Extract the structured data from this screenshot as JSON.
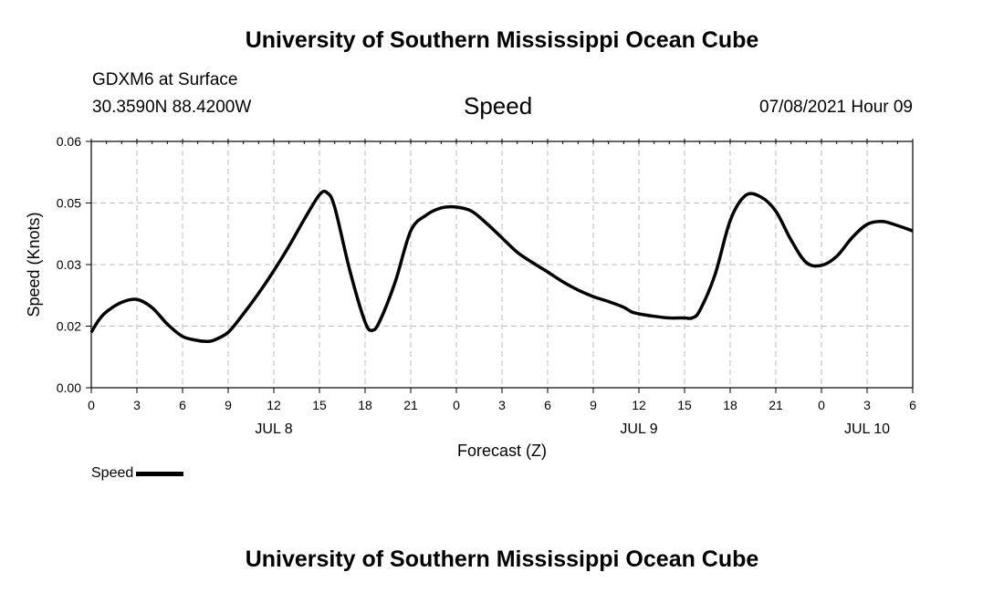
{
  "header": {
    "top_title": "University of Southern Mississippi Ocean Cube",
    "station": "GDXM6 at Surface",
    "coords": "30.3590N  88.4200W",
    "date": "07/08/2021 Hour 09"
  },
  "footer": {
    "bottom_title": "University of Southern Mississippi Ocean Cube"
  },
  "legend": {
    "label": "Speed",
    "color": "#000000"
  },
  "chart_data": {
    "type": "line",
    "title": "Speed",
    "xlabel": "Forecast (Z)",
    "ylabel": "Speed (Knots)",
    "xlim": [
      0,
      54
    ],
    "ylim": [
      0,
      0.06
    ],
    "grid": true,
    "legend_position": "bottom-left",
    "x_tick_labels": [
      "0",
      "3",
      "6",
      "9",
      "12",
      "15",
      "18",
      "21",
      "0",
      "3",
      "6",
      "9",
      "12",
      "15",
      "18",
      "21",
      "0",
      "3",
      "6"
    ],
    "y_tick_labels": [
      "0.00",
      "0.02",
      "0.03",
      "0.05",
      "0.06"
    ],
    "y_tick_values": [
      0,
      0.015,
      0.03,
      0.045,
      0.06
    ],
    "date_labels": [
      {
        "text": "JUL 8",
        "hour": 12
      },
      {
        "text": "JUL 9",
        "hour": 36
      },
      {
        "text": "JUL 10",
        "hour": 51
      }
    ],
    "series": [
      {
        "name": "Speed",
        "x": [
          0,
          0.5,
          1,
          2,
          3,
          4,
          5,
          6,
          7,
          7.5,
          8,
          9,
          10,
          11,
          12,
          13,
          14,
          15,
          15.5,
          16,
          17,
          18,
          18.5,
          19,
          20,
          21,
          22,
          23,
          24,
          25,
          26,
          27,
          28,
          29,
          30,
          31,
          32,
          33,
          34,
          35,
          35.5,
          36,
          37,
          38,
          39,
          39.5,
          40,
          41,
          42,
          43,
          44,
          45,
          46,
          47,
          48,
          49,
          50,
          51,
          52,
          53,
          54
        ],
        "y": [
          0.0135,
          0.0165,
          0.0185,
          0.0208,
          0.0215,
          0.0195,
          0.0155,
          0.0125,
          0.0115,
          0.0113,
          0.0115,
          0.0135,
          0.018,
          0.023,
          0.0285,
          0.0345,
          0.041,
          0.047,
          0.0475,
          0.044,
          0.0285,
          0.016,
          0.014,
          0.0165,
          0.026,
          0.0382,
          0.042,
          0.0438,
          0.044,
          0.043,
          0.04,
          0.0365,
          0.033,
          0.0305,
          0.0282,
          0.0258,
          0.0238,
          0.0222,
          0.021,
          0.0196,
          0.0185,
          0.018,
          0.0174,
          0.017,
          0.017,
          0.017,
          0.0188,
          0.0275,
          0.0407,
          0.0468,
          0.0465,
          0.043,
          0.036,
          0.0305,
          0.0298,
          0.032,
          0.0365,
          0.0398,
          0.0405,
          0.0395,
          0.0382
        ]
      }
    ]
  }
}
